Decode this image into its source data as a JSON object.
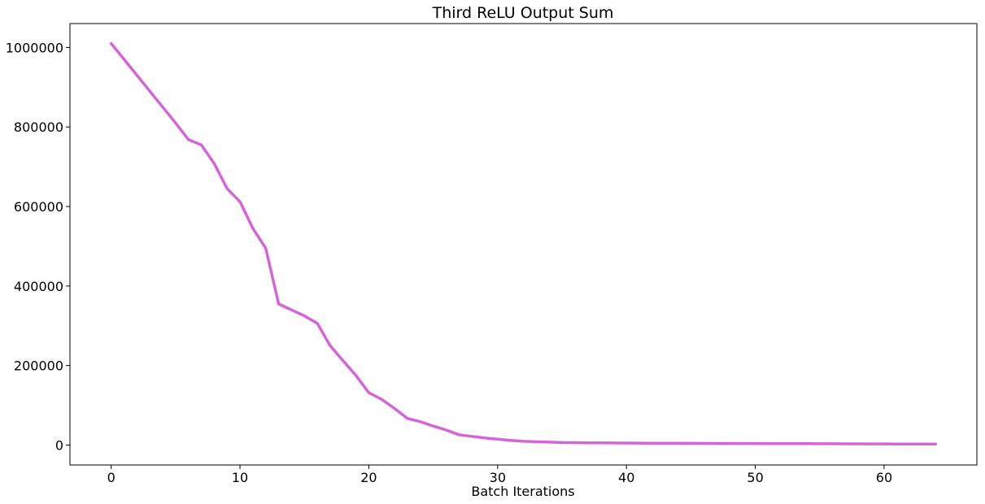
{
  "chart_data": {
    "type": "line",
    "title": "Third ReLU Output Sum",
    "xlabel": "Batch Iterations",
    "ylabel": "",
    "xlim": [
      -3.2,
      67.2
    ],
    "ylim": [
      -50000,
      1060000
    ],
    "x_ticks": [
      0,
      10,
      20,
      30,
      40,
      50,
      60
    ],
    "y_ticks": [
      0,
      200000,
      400000,
      600000,
      800000,
      1000000
    ],
    "grid": false,
    "series": [
      {
        "color": "#d664d9",
        "x": [
          0,
          1,
          2,
          3,
          4,
          5,
          6,
          7,
          8,
          9,
          10,
          11,
          12,
          13,
          14,
          15,
          16,
          17,
          18,
          19,
          20,
          21,
          22,
          23,
          24,
          25,
          26,
          27,
          28,
          29,
          30,
          31,
          32,
          33,
          34,
          35,
          36,
          37,
          38,
          39,
          40,
          41,
          42,
          43,
          44,
          45,
          46,
          47,
          48,
          49,
          50,
          51,
          52,
          53,
          54,
          55,
          56,
          57,
          58,
          59,
          60,
          61,
          62,
          63,
          64
        ],
        "y": [
          1010000,
          970000,
          930000,
          890000,
          850000,
          810000,
          768000,
          755000,
          708000,
          645000,
          612000,
          545000,
          495000,
          355000,
          340000,
          325000,
          306000,
          250000,
          212000,
          175000,
          132000,
          115000,
          92000,
          67000,
          59000,
          48000,
          38000,
          26000,
          22000,
          18000,
          15000,
          12000,
          9500,
          8500,
          7500,
          6500,
          6200,
          5900,
          5600,
          5400,
          5200,
          5000,
          4800,
          4600,
          4500,
          4400,
          4300,
          4200,
          4100,
          4000,
          3900,
          3800,
          3700,
          3600,
          3500,
          3400,
          3300,
          3200,
          3100,
          3000,
          2900,
          2800,
          2700,
          2600,
          2500
        ]
      }
    ]
  }
}
